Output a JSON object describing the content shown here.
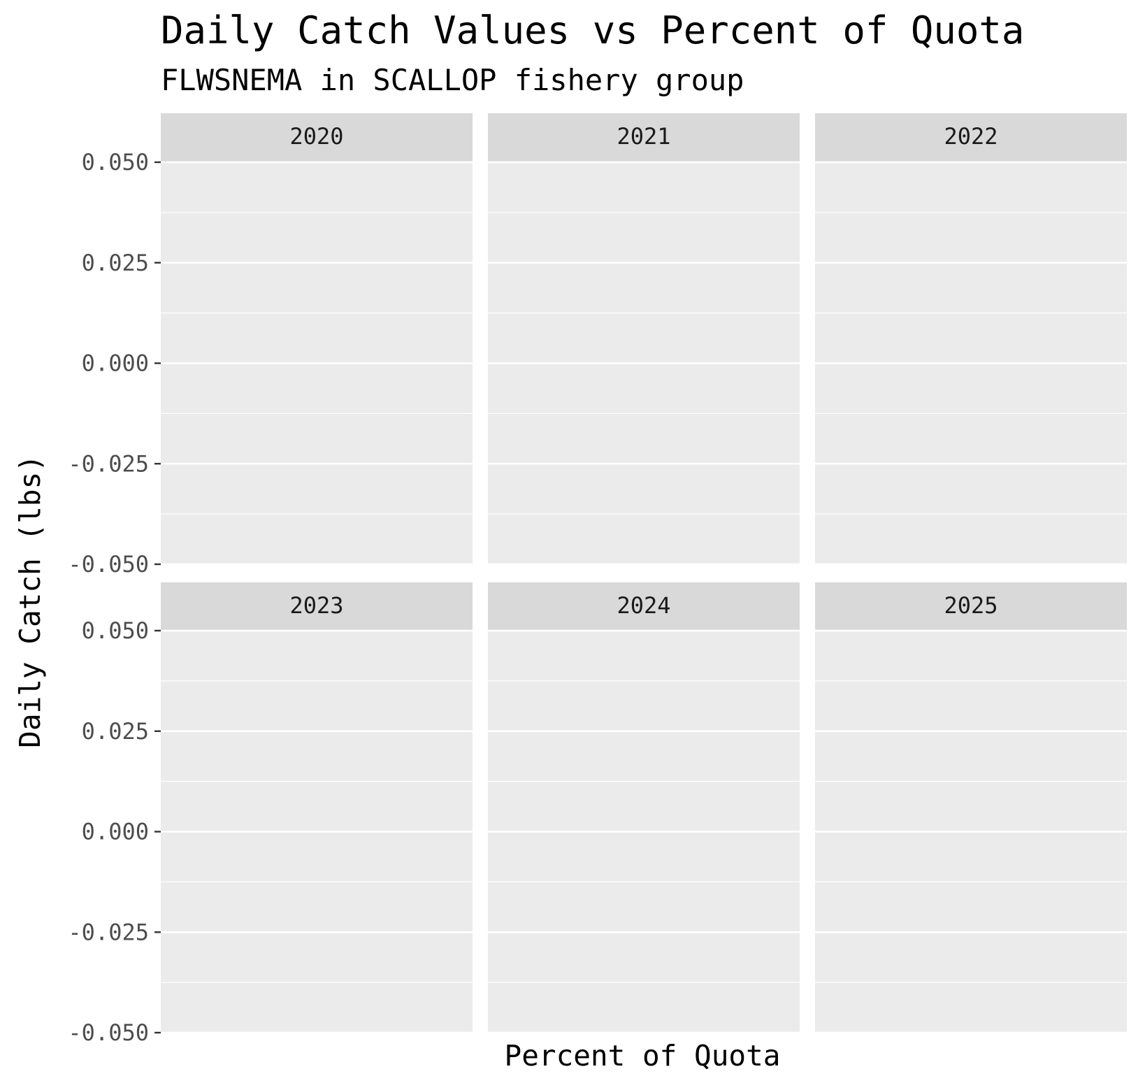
{
  "colors": {
    "panel_background": "#ebebeb",
    "strip_background": "#d9d9d9",
    "grid_major": "#ffffff",
    "tick_text": "#4d4d4d",
    "text": "#000000"
  },
  "chart_data": {
    "type": "scatter",
    "title": "Daily Catch Values vs Percent of Quota",
    "subtitle": "FLWSNEMA in SCALLOP fishery group",
    "xlabel": "Percent of Quota",
    "ylabel": "Daily Catch (lbs)",
    "ylim": [
      -0.05,
      0.05
    ],
    "yticks": [
      0.05,
      0.025,
      0.0,
      -0.025,
      -0.05
    ],
    "ytick_labels": [
      "0.050",
      "0.025",
      "0.000",
      "-0.025",
      "-0.050"
    ],
    "grid": true,
    "facets": [
      "2020",
      "2021",
      "2022",
      "2023",
      "2024",
      "2025"
    ],
    "facet_layout": "3 columns x 2 rows",
    "series": []
  }
}
